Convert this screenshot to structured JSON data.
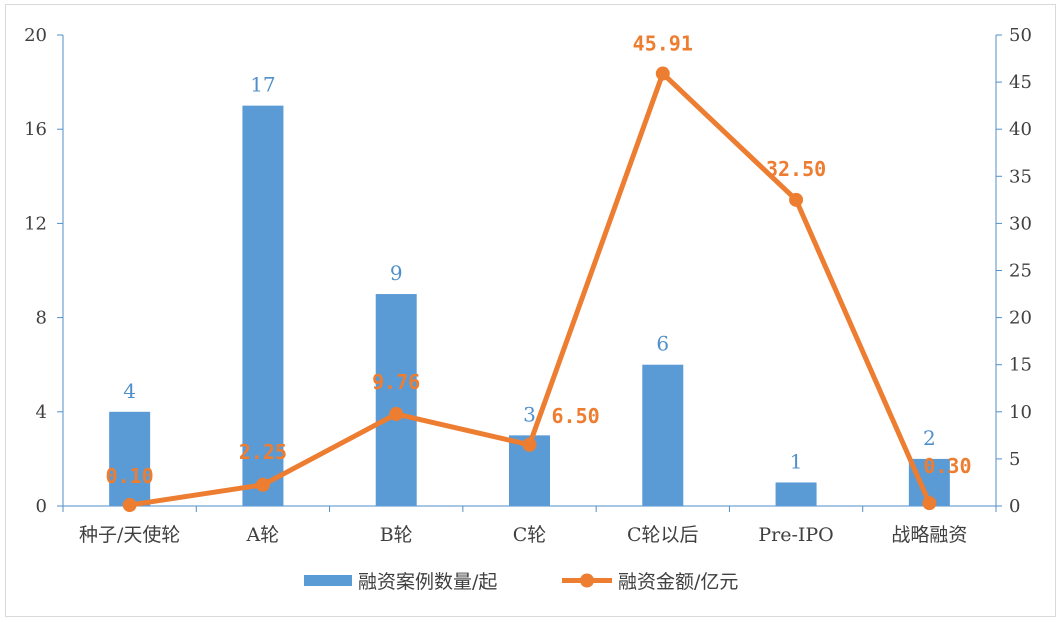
{
  "chart_data": {
    "type": "bar+line",
    "title": "",
    "categories": [
      "种子/天使轮",
      "A轮",
      "B轮",
      "C轮",
      "C轮以后",
      "Pre-IPO",
      "战略融资"
    ],
    "series": [
      {
        "name": "融资案例数量/起",
        "type": "bar",
        "axis": "left",
        "color": "#5b9bd5",
        "label_color": "#4f8fca",
        "values": [
          4,
          17,
          9,
          3,
          6,
          1,
          2
        ],
        "labels": [
          "4",
          "17",
          "9",
          "3",
          "6",
          "1",
          "2"
        ]
      },
      {
        "name": "融资金额/亿元",
        "type": "line",
        "axis": "right",
        "color": "#ed7d31",
        "values": [
          0.1,
          2.25,
          9.76,
          6.5,
          45.91,
          32.5,
          0.3
        ],
        "labels": [
          "0.10",
          "2.25",
          "9.76",
          "6.50",
          "45.91",
          "32.50",
          "0.30"
        ]
      }
    ],
    "y_left": {
      "range": [
        0,
        20
      ],
      "ticks": [
        0,
        4,
        8,
        12,
        16,
        20
      ],
      "tick_labels": [
        "0",
        "4",
        "8",
        "12",
        "16",
        "20"
      ]
    },
    "y_right": {
      "range": [
        0,
        50
      ],
      "ticks": [
        0,
        5,
        10,
        15,
        20,
        25,
        30,
        35,
        40,
        45,
        50
      ],
      "tick_labels": [
        "0",
        "5",
        "10",
        "15",
        "20",
        "25",
        "30",
        "35",
        "40",
        "45",
        "50"
      ]
    },
    "grid": false,
    "legend_position": "bottom",
    "axis_color": "#4f8fca"
  }
}
